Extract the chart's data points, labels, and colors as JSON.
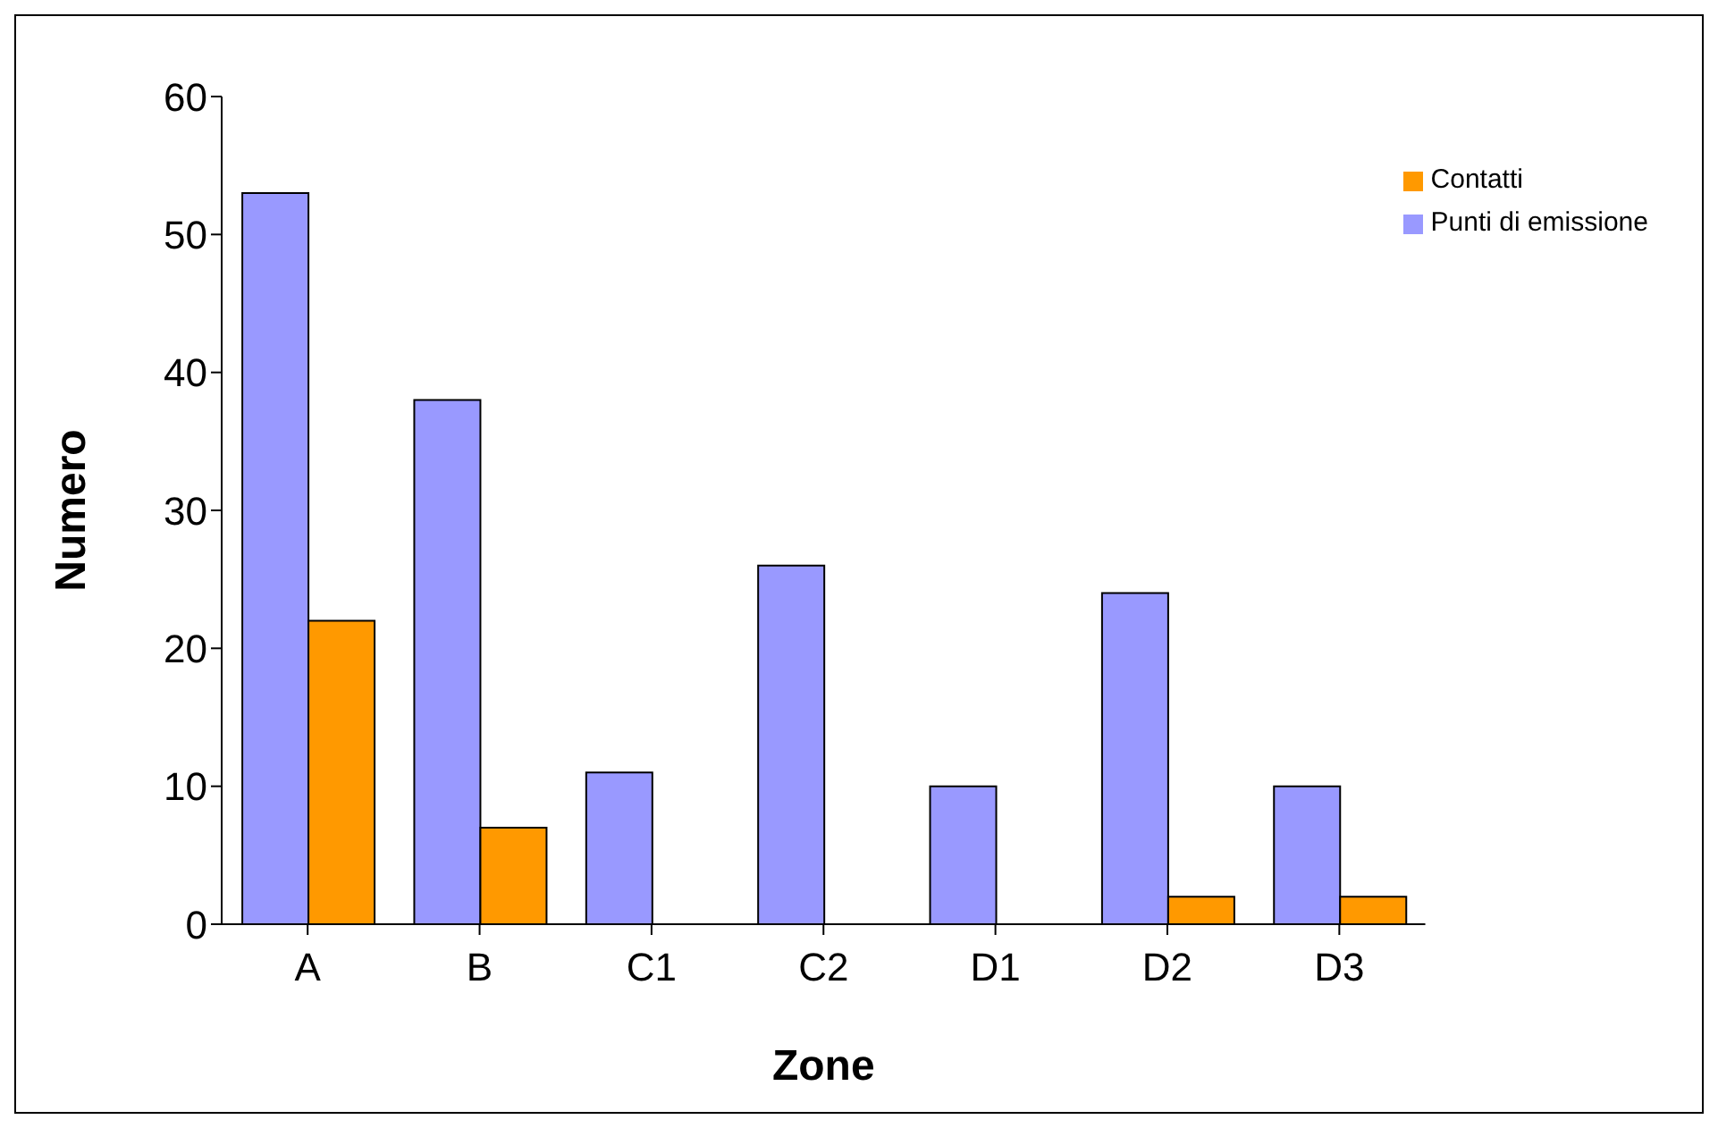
{
  "chart_data": {
    "type": "bar",
    "xlabel": "Zone",
    "ylabel": "Numero",
    "categories": [
      "A",
      "B",
      "C1",
      "C2",
      "D1",
      "D2",
      "D3"
    ],
    "series": [
      {
        "name": "Punti di emissione",
        "color": "#9999ff",
        "values": [
          53,
          38,
          11,
          26,
          10,
          24,
          10
        ]
      },
      {
        "name": "Contatti",
        "color": "#ff9900",
        "values": [
          22,
          7,
          0,
          0,
          0,
          2,
          2
        ]
      }
    ],
    "ylim": [
      0,
      60
    ],
    "yticks": [
      0,
      10,
      20,
      30,
      40,
      50,
      60
    ],
    "grid": false,
    "legend": "top right"
  }
}
